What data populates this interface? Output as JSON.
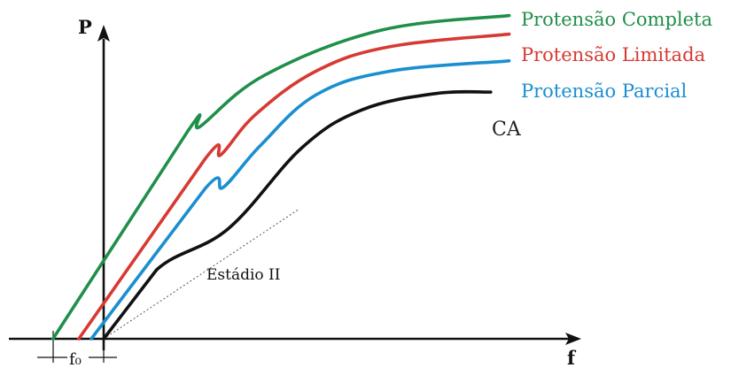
{
  "chart_data": {
    "type": "line",
    "title": "",
    "xlabel": "f",
    "ylabel": "P",
    "x_tick_labels": [
      "f₀"
    ],
    "series": [
      {
        "name": "Protensão Completa",
        "color": "#1f8f4a",
        "points": [
          [
            -1.1,
            0
          ],
          [
            1.83,
            2.8
          ],
          [
            2.1,
            2.86
          ],
          [
            3.5,
            3.55
          ],
          [
            6.0,
            4.15
          ],
          [
            8.8,
            4.35
          ]
        ]
      },
      {
        "name": "Protensão Limitada",
        "color": "#d63a33",
        "points": [
          [
            -0.54,
            0
          ],
          [
            2.2,
            2.42
          ],
          [
            2.55,
            2.48
          ],
          [
            3.3,
            3.02
          ],
          [
            4.6,
            3.6
          ],
          [
            6.2,
            3.93
          ],
          [
            8.8,
            4.1
          ]
        ]
      },
      {
        "name": "Protensão Parcial",
        "color": "#1a8fd0",
        "points": [
          [
            -0.27,
            0
          ],
          [
            2.2,
            2.02
          ],
          [
            2.6,
            2.04
          ],
          [
            3.4,
            2.6
          ],
          [
            4.6,
            3.28
          ],
          [
            6.2,
            3.6
          ],
          [
            8.8,
            3.74
          ]
        ]
      },
      {
        "name": "CA",
        "color": "#111111",
        "points": [
          [
            0,
            0
          ],
          [
            1.15,
            0.93
          ],
          [
            2.7,
            1.48
          ],
          [
            4.3,
            2.57
          ],
          [
            5.6,
            3.08
          ],
          [
            7.2,
            3.3
          ],
          [
            8.4,
            3.32
          ]
        ]
      }
    ],
    "guide_line": {
      "label": "Estádio II",
      "points": [
        [
          0,
          0
        ],
        [
          4.25,
          1.75
        ]
      ]
    }
  }
}
